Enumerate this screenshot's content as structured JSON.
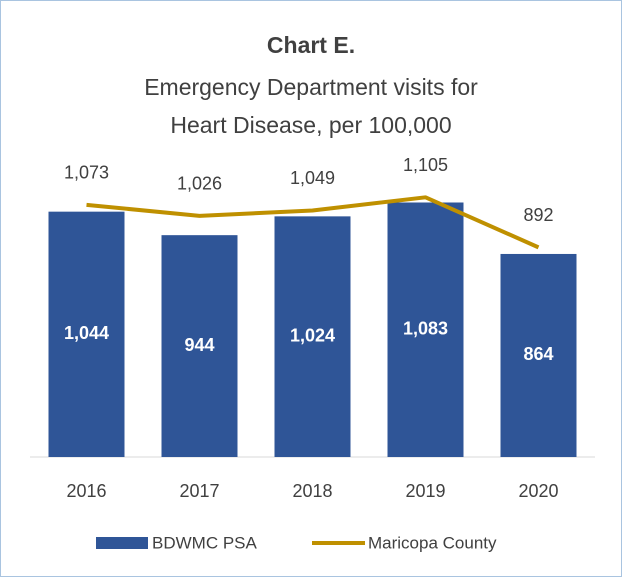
{
  "chart_data": {
    "type": "bar",
    "title": "Chart E.",
    "subtitle": [
      "Emergency Department visits for",
      "Heart Disease, per 100,000"
    ],
    "categories": [
      "2016",
      "2017",
      "2018",
      "2019",
      "2020"
    ],
    "ylim": [
      0,
      1200
    ],
    "series": [
      {
        "name": "BDWMC PSA",
        "type": "bar",
        "color": "#2f5597",
        "values": [
          1044,
          944,
          1024,
          1083,
          864
        ],
        "value_labels": [
          "1,044",
          "944",
          "1,024",
          "1,083",
          "864"
        ]
      },
      {
        "name": "Maricopa County",
        "type": "line",
        "color": "#bf9000",
        "values": [
          1073,
          1026,
          1049,
          1105,
          892
        ],
        "value_labels": [
          "1,073",
          "1,026",
          "1,049",
          "1,105",
          "892"
        ]
      }
    ]
  }
}
